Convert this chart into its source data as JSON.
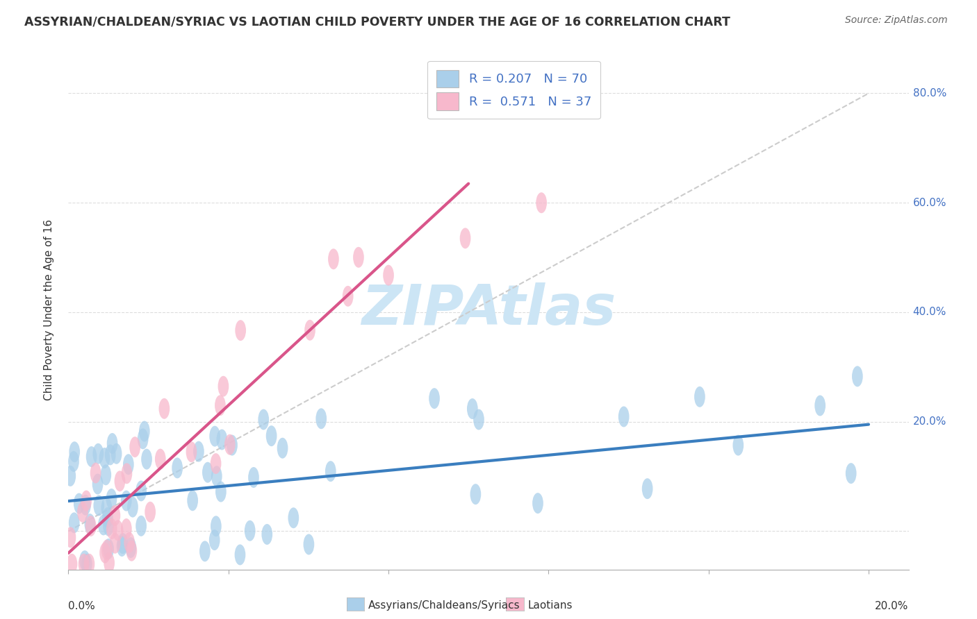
{
  "title": "ASSYRIAN/CHALDEAN/SYRIAC VS LAOTIAN CHILD POVERTY UNDER THE AGE OF 16 CORRELATION CHART",
  "source": "Source: ZipAtlas.com",
  "ylabel": "Child Poverty Under the Age of 16",
  "xlim": [
    0.0,
    0.21
  ],
  "ylim": [
    -0.07,
    0.88
  ],
  "blue_R": 0.207,
  "blue_N": 70,
  "pink_R": 0.571,
  "pink_N": 37,
  "blue_color": "#aacfea",
  "pink_color": "#f7b8cc",
  "blue_line_color": "#3a7ebf",
  "pink_line_color": "#d9558a",
  "ref_line_color": "#cccccc",
  "watermark": "ZIPAtlas",
  "watermark_color": "#cce5f5",
  "legend_label_blue": "Assyrians/Chaldeans/Syriacs",
  "legend_label_pink": "Laotians",
  "blue_line_x0": 0.0,
  "blue_line_y0": 0.055,
  "blue_line_x1": 0.2,
  "blue_line_y1": 0.195,
  "pink_line_x0": 0.0,
  "pink_line_y0": -0.04,
  "pink_line_x1": 0.1,
  "pink_line_y1": 0.635,
  "ytick_positions": [
    0.0,
    0.2,
    0.4,
    0.6,
    0.8
  ],
  "ytick_labels": [
    "",
    "20.0%",
    "40.0%",
    "60.0%",
    "80.0%"
  ],
  "grid_color": "#dddddd",
  "title_color": "#333333",
  "source_color": "#666666",
  "axis_label_color": "#4472c4",
  "xlabel_color": "#333333"
}
